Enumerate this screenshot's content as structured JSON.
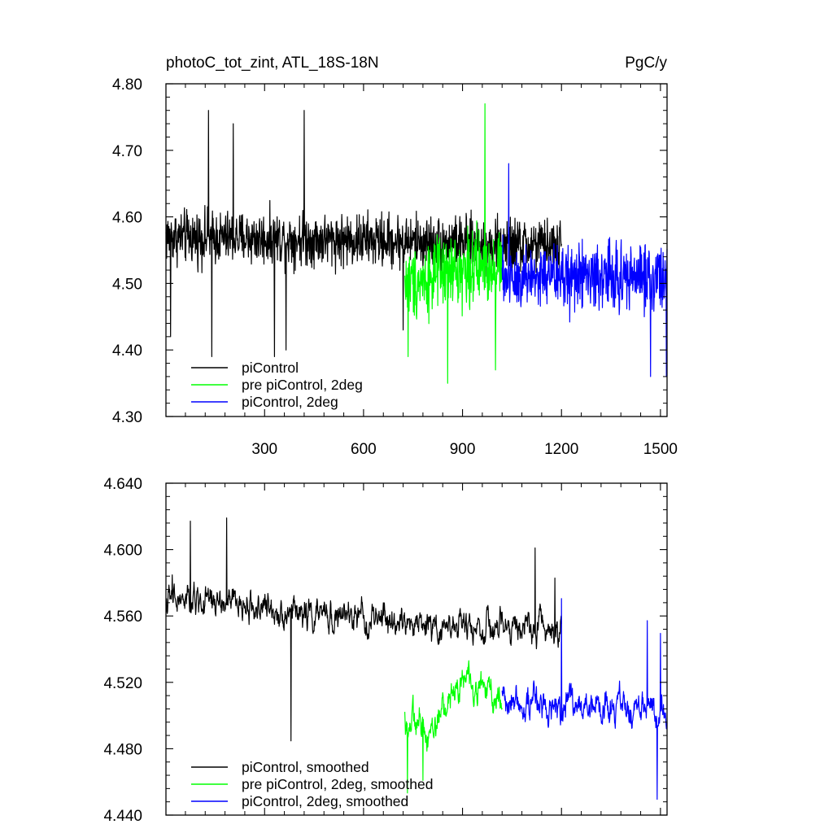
{
  "chart_data": [
    {
      "type": "line",
      "title_left": "photoC_tot_zint, ATL_18S-18N",
      "title_right": "PgC/y",
      "xlabel": "",
      "ylabel": "",
      "xlim": [
        1,
        1520
      ],
      "ylim": [
        4.3,
        4.8
      ],
      "yticks": [
        "4.30",
        "4.40",
        "4.50",
        "4.60",
        "4.70",
        "4.80"
      ],
      "xticks": [
        "300",
        "600",
        "900",
        "1200",
        "1500"
      ],
      "legend_position": "bottom-left",
      "series": [
        {
          "name": "piControl",
          "color": "#000000",
          "x_start": 1,
          "x_end": 1200,
          "mean": [
            [
              1,
              4.57
            ],
            [
              600,
              4.565
            ],
            [
              1200,
              4.555
            ]
          ],
          "noise": 0.028,
          "spikes": [
            [
              15,
              4.42
            ],
            [
              130,
              4.76
            ],
            [
              140,
              4.39
            ],
            [
              160,
              4.56
            ],
            [
              205,
              4.74
            ],
            [
              330,
              4.39
            ],
            [
              365,
              4.4
            ],
            [
              420,
              4.76
            ],
            [
              720,
              4.43
            ]
          ]
        },
        {
          "name": "pre piControl, 2deg",
          "color": "#00ff00",
          "x_start": 725,
          "x_end": 1020,
          "mean": [
            [
              725,
              4.5
            ],
            [
              900,
              4.52
            ],
            [
              1020,
              4.53
            ]
          ],
          "noise": 0.038,
          "spikes": [
            [
              735,
              4.39
            ],
            [
              855,
              4.35
            ],
            [
              968,
              4.77
            ],
            [
              1000,
              4.37
            ]
          ]
        },
        {
          "name": "piControl, 2deg",
          "color": "#0000ff",
          "x_start": 1020,
          "x_end": 1520,
          "mean": [
            [
              1020,
              4.51
            ],
            [
              1520,
              4.51
            ]
          ],
          "noise": 0.036,
          "spikes": [
            [
              1040,
              4.68
            ],
            [
              1470,
              4.36
            ],
            [
              1518,
              4.36
            ]
          ]
        }
      ]
    },
    {
      "type": "line",
      "title_left": "",
      "title_right": "",
      "xlabel": "",
      "ylabel": "",
      "xlim": [
        1,
        1520
      ],
      "ylim": [
        4.44,
        4.65
      ],
      "yticks": [
        "4.440",
        "4.480",
        "4.520",
        "4.560",
        "4.600",
        "4.640"
      ],
      "xticks": [],
      "legend_position": "bottom-left",
      "series": [
        {
          "name": "piControl, smoothed",
          "color": "#000000",
          "x_start": 1,
          "x_end": 1200,
          "mean": [
            [
              1,
              4.575
            ],
            [
              150,
              4.575
            ],
            [
              400,
              4.568
            ],
            [
              700,
              4.562
            ],
            [
              1000,
              4.558
            ],
            [
              1200,
              4.56
            ]
          ],
          "noise": 0.011,
          "spikes": [
            [
              20,
              4.592
            ],
            [
              75,
              4.626
            ],
            [
              185,
              4.628
            ],
            [
              380,
              4.487
            ],
            [
              1120,
              4.609
            ],
            [
              1180,
              4.59
            ]
          ]
        },
        {
          "name": "pre piControl, 2deg, smoothed",
          "color": "#00ff00",
          "x_start": 725,
          "x_end": 1020,
          "mean": [
            [
              725,
              4.5
            ],
            [
              800,
              4.495
            ],
            [
              900,
              4.525
            ],
            [
              1020,
              4.515
            ]
          ],
          "noise": 0.012,
          "spikes": [
            [
              733,
              4.454
            ],
            [
              780,
              4.462
            ]
          ]
        },
        {
          "name": "piControl, 2deg, smoothed",
          "color": "#0000ff",
          "x_start": 1020,
          "x_end": 1520,
          "mean": [
            [
              1020,
              4.515
            ],
            [
              1200,
              4.51
            ],
            [
              1520,
              4.505
            ]
          ],
          "noise": 0.012,
          "spikes": [
            [
              1200,
              4.577
            ],
            [
              1460,
              4.563
            ],
            [
              1490,
              4.45
            ],
            [
              1500,
              4.555
            ]
          ]
        }
      ]
    }
  ]
}
